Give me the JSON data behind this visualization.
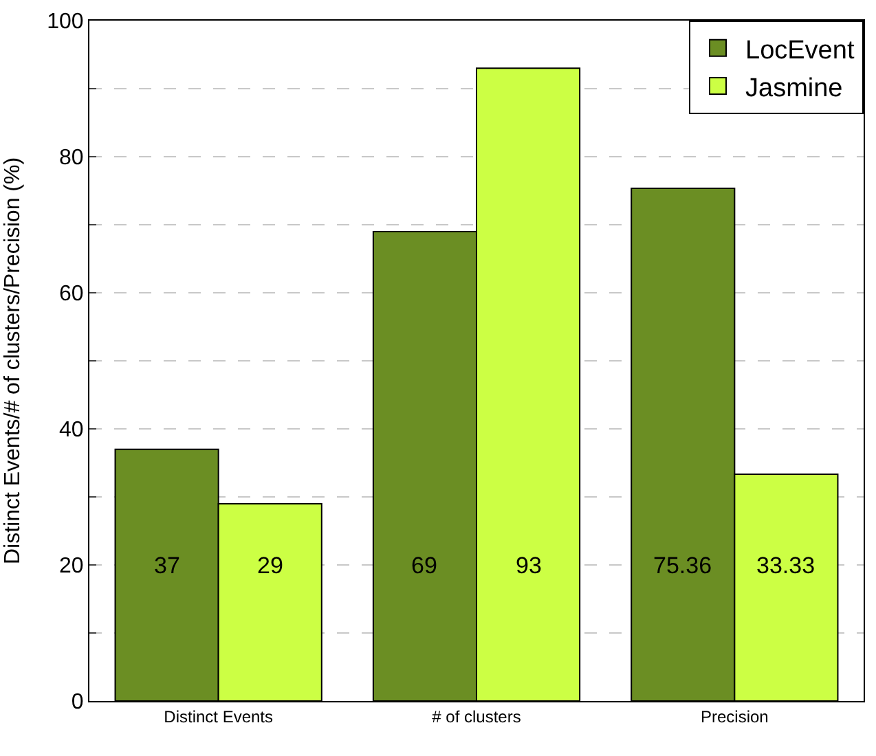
{
  "chart_data": {
    "type": "bar",
    "ylabel": "Distinct Events/# of clusters/Precision (%)",
    "categories": [
      "Distinct Events",
      "# of clusters",
      "Precision"
    ],
    "series": [
      {
        "name": "LocEvent",
        "color": "#6b8e23",
        "values": [
          37,
          69,
          75.36
        ]
      },
      {
        "name": "Jasmine",
        "color": "#ccff44",
        "values": [
          29,
          93,
          33.33
        ]
      }
    ],
    "ylim": [
      0,
      100
    ],
    "yticks": [
      0,
      {
        "value": 10,
        "label": null
      },
      20,
      {
        "value": 30,
        "label": null
      },
      40,
      {
        "value": 50,
        "label": null
      },
      60,
      {
        "value": 70,
        "label": null
      },
      80,
      {
        "value": 90,
        "label": null
      },
      100
    ],
    "grid": "y",
    "legend": "top right",
    "data_labels": true
  }
}
